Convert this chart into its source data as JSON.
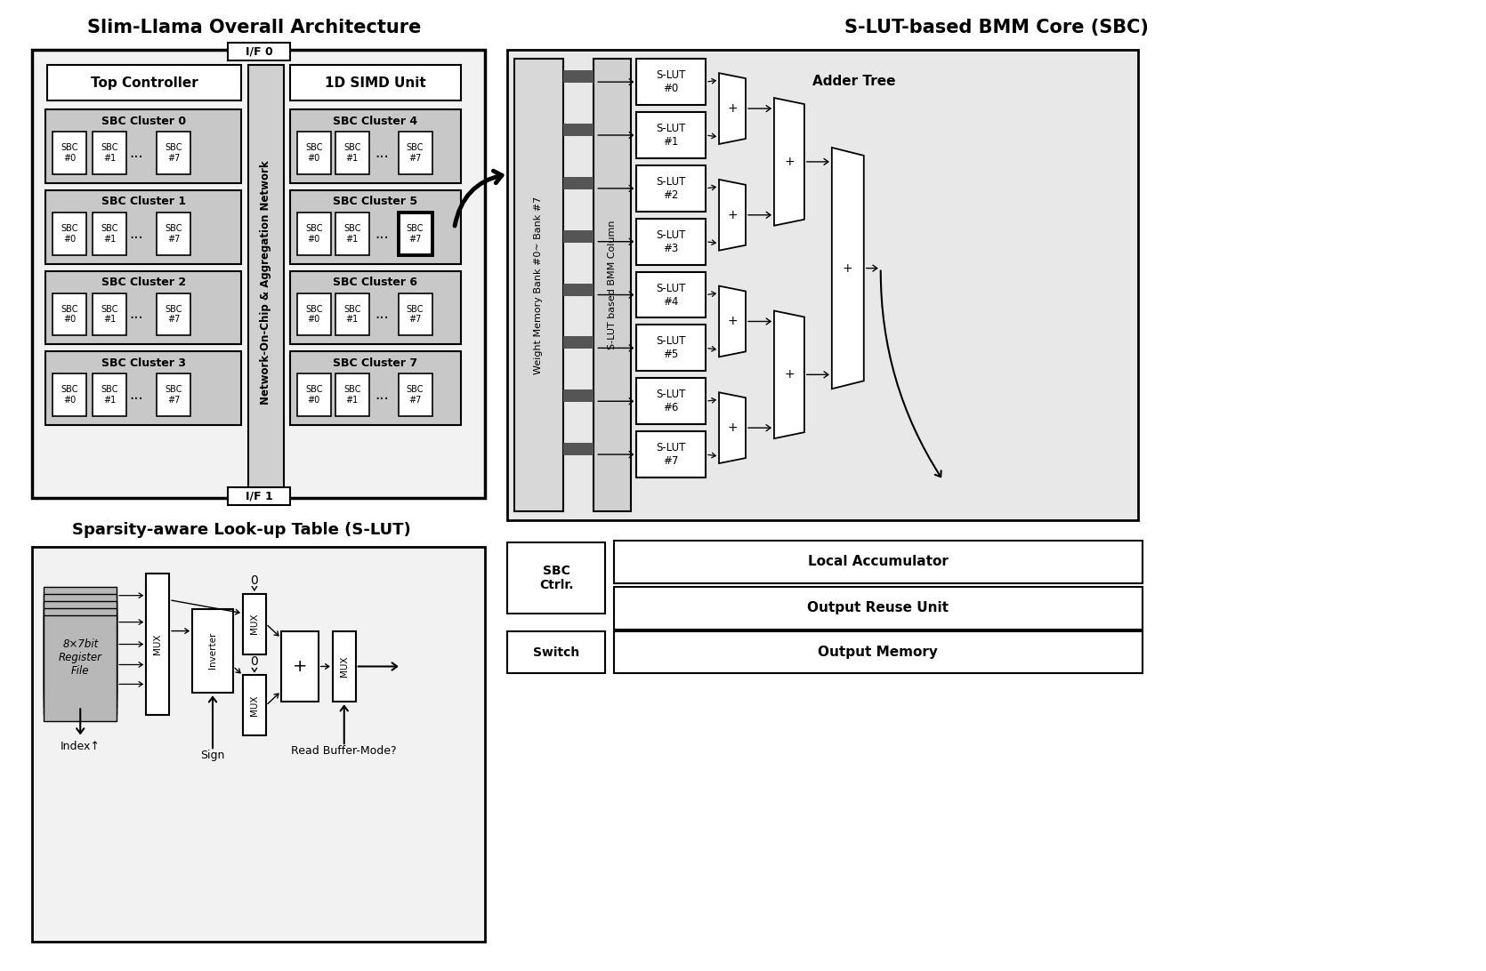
{
  "title_left": "Slim-Llama Overall Architecture",
  "title_right": "S-LUT-based BMM Core (SBC)",
  "bg_color": "#ffffff",
  "cluster_gray": "#c8c8c8",
  "panel_gray": "#f0f0f0",
  "noc_gray": "#d0d0d0",
  "sbc_clusters_left": [
    "SBC Cluster 0",
    "SBC Cluster 1",
    "SBC Cluster 2",
    "SBC Cluster 3"
  ],
  "sbc_clusters_right": [
    "SBC Cluster 4",
    "SBC Cluster 5",
    "SBC Cluster 6",
    "SBC Cluster 7"
  ],
  "slut_labels": [
    "S-LUT\n#0",
    "S-LUT\n#1",
    "S-LUT\n#2",
    "S-LUT\n#3",
    "S-LUT\n#4",
    "S-LUT\n#5",
    "S-LUT\n#6",
    "S-LUT\n#7"
  ],
  "bottom_blocks": [
    "Local Accumulator",
    "Output Reuse Unit",
    "Output Memory"
  ],
  "slut_title": "Sparsity-aware Look-up Table (S-LUT)",
  "noc_label": "Network-On-Chip & Aggregation Network",
  "weight_mem_label": "Weight Memory Bank #0~ Bank #7",
  "bmm_col_label": "S-LUT based BMM Column",
  "adder_tree_label": "Adder Tree",
  "top_ctrl_label": "Top Controller",
  "simd_label": "1D SIMD Unit",
  "sbc_ctrl_label": "SBC\nCtrlr.",
  "switch_label": "Switch",
  "if0_label": "I/F 0",
  "if1_label": "I/F 1",
  "reg_file_label": "8×7bit\nRegister\nFile",
  "inverter_label": "Inverter",
  "index_label": "Index↑",
  "sign_label": "Sign",
  "read_buf_label": "Read Buffer-Mode?"
}
